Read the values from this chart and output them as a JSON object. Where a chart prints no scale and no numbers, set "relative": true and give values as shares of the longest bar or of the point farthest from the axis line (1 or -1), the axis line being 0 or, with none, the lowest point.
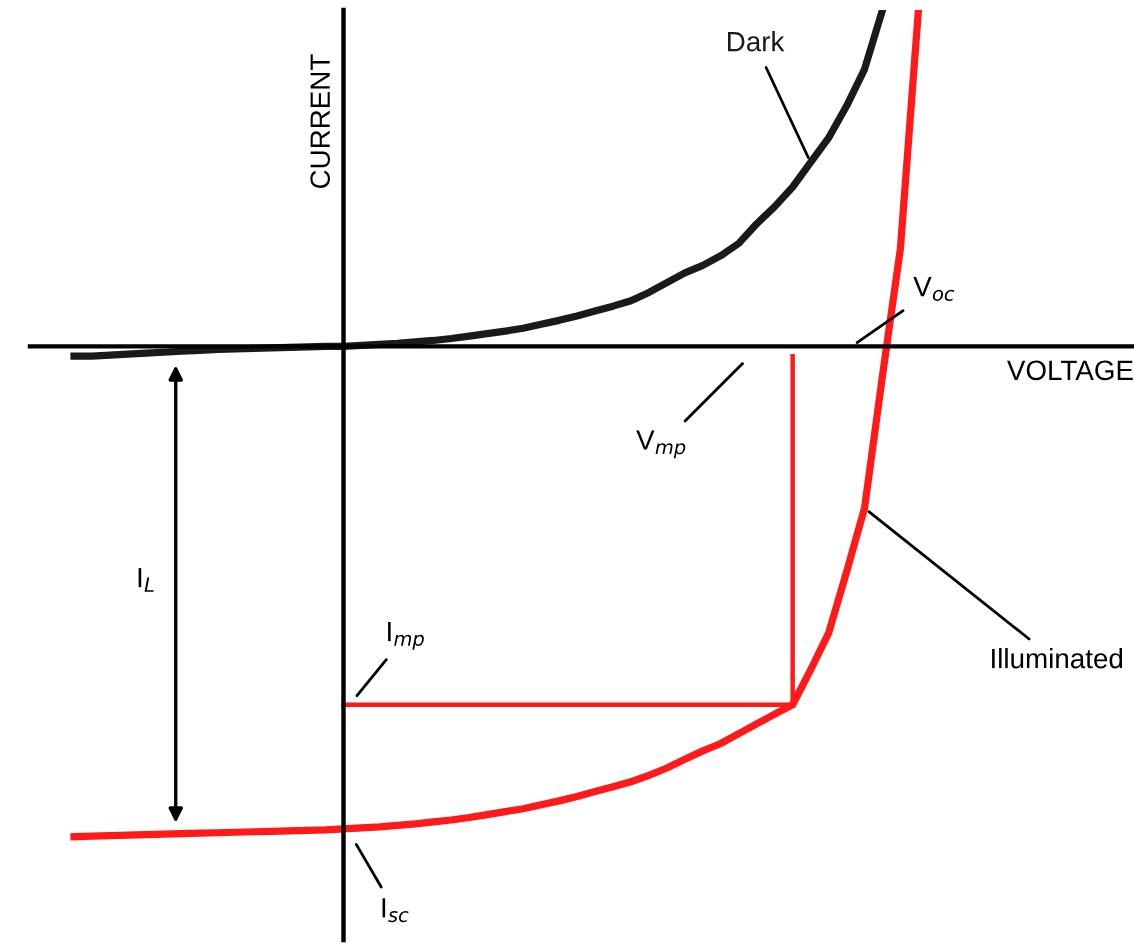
{
  "chart_data": {
    "type": "line",
    "relative": true,
    "xlabel": "VOLTAGE",
    "ylabel": "CURRENT",
    "categories": [
      null,
      null,
      null,
      null,
      null,
      null,
      null,
      null,
      null,
      null,
      null,
      null,
      null,
      null,
      null,
      null,
      null,
      null,
      null,
      null,
      null,
      null,
      null,
      null,
      null,
      null,
      null,
      null,
      null,
      null,
      null,
      null,
      null,
      null,
      null,
      null,
      null,
      null,
      null,
      null,
      null,
      null,
      null,
      null,
      null,
      null,
      null,
      null,
      null
    ],
    "series": [
      {
        "name": "Dark",
        "color": "#1a1a1a",
        "values": [
          -0.02,
          -0.02,
          -0.018,
          -0.016,
          -0.014,
          -0.012,
          -0.01,
          -0.008,
          -0.006,
          -0.005,
          -0.004,
          -0.003,
          -0.002,
          -0.001,
          0,
          0,
          0.002,
          0.004,
          0.006,
          0.009,
          0.012,
          0.016,
          0.021,
          0.026,
          0.031,
          0.037,
          0.045,
          0.053,
          0.062,
          0.072,
          0.082,
          0.093,
          0.11,
          0.13,
          0.15,
          0.165,
          0.185,
          0.21,
          0.25,
          0.285,
          0.325,
          0.375,
          0.425,
          0.49,
          0.565,
          0.686,
          null,
          null,
          null
        ]
      },
      {
        "name": "Illuminated",
        "color": "#ff1a1a",
        "values": [
          -1,
          -0.999,
          -0.998,
          -0.997,
          -0.996,
          -0.995,
          -0.994,
          -0.993,
          -0.992,
          -0.991,
          -0.99,
          -0.989,
          -0.988,
          -0.987,
          -0.986,
          -0.984,
          -0.982,
          -0.98,
          -0.977,
          -0.974,
          -0.97,
          -0.966,
          -0.961,
          -0.955,
          -0.949,
          -0.943,
          -0.935,
          -0.927,
          -0.918,
          -0.908,
          -0.898,
          -0.888,
          -0.875,
          -0.86,
          -0.842,
          -0.825,
          -0.81,
          -0.79,
          -0.77,
          -0.75,
          -0.731,
          -0.66,
          -0.585,
          -0.46,
          -0.33,
          -0.06,
          0.2,
          0.686,
          null
        ]
      },
      {
        "type": "step",
        "color": "#ff1a1a",
        "values": [
          null,
          null,
          null,
          null,
          null,
          null,
          null,
          null,
          null,
          null,
          null,
          null,
          null,
          null,
          null,
          -0.731,
          -0.731,
          -0.731,
          -0.731,
          -0.731,
          -0.731,
          -0.731,
          -0.731,
          -0.731,
          -0.731,
          -0.731,
          -0.731,
          -0.731,
          -0.731,
          -0.731,
          -0.731,
          -0.731,
          -0.731,
          -0.731,
          -0.731,
          -0.731,
          -0.731,
          -0.731,
          -0.731,
          -0.731,
          -0.02,
          null,
          null,
          null,
          null,
          null,
          null,
          null,
          null
        ]
      }
    ],
    "annotations": [
      "V$_{oc}$",
      "V$_{mp}$",
      "I$_{mp}$",
      "I$_{sc}$",
      "I$_{L}$"
    ]
  }
}
